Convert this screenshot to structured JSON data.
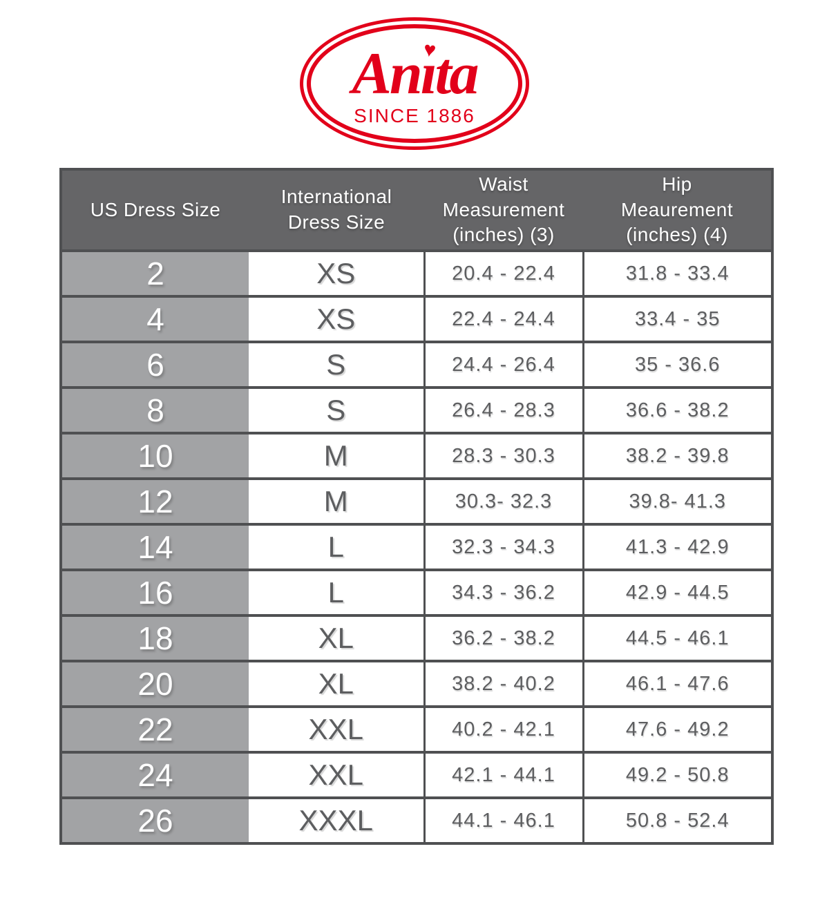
{
  "logo": {
    "brand": "Anita",
    "tagline": "SINCE 1886",
    "heart_icon": "♥",
    "brand_color": "#e2001a"
  },
  "table": {
    "columns": [
      "US Dress Size",
      "International\nDress Size",
      "Waist\nMeasurement\n(inches) (3)",
      "Hip\nMeaurement\n(inches) (4)"
    ],
    "rows": [
      {
        "us": "2",
        "intl": "XS",
        "waist": "20.4 - 22.4",
        "hip": "31.8 - 33.4"
      },
      {
        "us": "4",
        "intl": "XS",
        "waist": "22.4 - 24.4",
        "hip": "33.4 - 35"
      },
      {
        "us": "6",
        "intl": "S",
        "waist": "24.4 - 26.4",
        "hip": "35 - 36.6"
      },
      {
        "us": "8",
        "intl": "S",
        "waist": "26.4 - 28.3",
        "hip": "36.6 - 38.2"
      },
      {
        "us": "10",
        "intl": "M",
        "waist": "28.3 - 30.3",
        "hip": "38.2 - 39.8"
      },
      {
        "us": "12",
        "intl": "M",
        "waist": "30.3- 32.3",
        "hip": "39.8- 41.3"
      },
      {
        "us": "14",
        "intl": "L",
        "waist": "32.3 - 34.3",
        "hip": "41.3 - 42.9"
      },
      {
        "us": "16",
        "intl": "L",
        "waist": "34.3 - 36.2",
        "hip": "42.9 - 44.5"
      },
      {
        "us": "18",
        "intl": "XL",
        "waist": "36.2 - 38.2",
        "hip": "44.5 - 46.1"
      },
      {
        "us": "20",
        "intl": "XL",
        "waist": "38.2 - 40.2",
        "hip": "46.1 - 47.6"
      },
      {
        "us": "22",
        "intl": "XXL",
        "waist": "40.2 - 42.1",
        "hip": "47.6 - 49.2"
      },
      {
        "us": "24",
        "intl": "XXL",
        "waist": "42.1 - 44.1",
        "hip": "49.2 - 50.8"
      },
      {
        "us": "26",
        "intl": "XXXL",
        "waist": "44.1 - 46.1",
        "hip": "50.8 - 52.4"
      }
    ],
    "colors": {
      "header_bg": "#656567",
      "us_column_bg": "#a2a3a5",
      "border": "#4f5052",
      "cell_text": "#5d5e60",
      "header_text": "#ffffff"
    }
  }
}
